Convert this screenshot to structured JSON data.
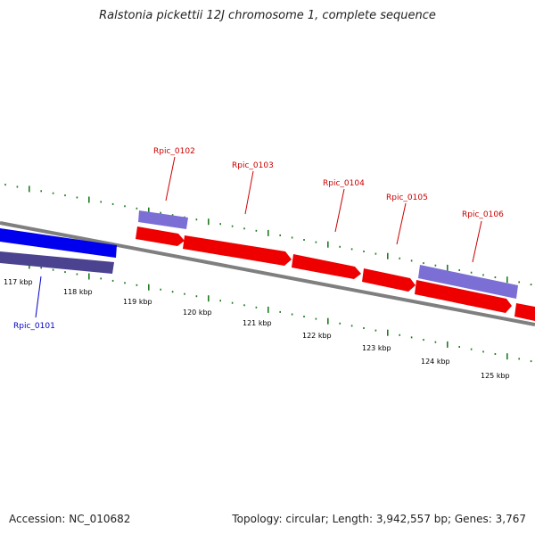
{
  "title": "Ralstonia pickettii 12J chromosome 1, complete sequence",
  "footer": {
    "accession": "Accession: NC_010682",
    "stats": "Topology: circular; Length: 3,942,557 bp; Genes: 3,767"
  },
  "colors": {
    "backbone": "#7f7f7f",
    "tick": "#1f7a1f",
    "forward_gene": "#ee0000",
    "forward_other": "#7b6fd6",
    "reverse_gene": "#0000ee",
    "reverse_other": "#4b4290",
    "label_forward": "#cc0000",
    "label_reverse": "#0000cc"
  },
  "scale_labels": [
    "117 kbp",
    "118 kbp",
    "119 kbp",
    "120 kbp",
    "121 kbp",
    "122 kbp",
    "123 kbp",
    "124 kbp",
    "125 kbp"
  ],
  "gene_labels": [
    {
      "text": "Rpic_0101",
      "strand": "reverse"
    },
    {
      "text": "Rpic_0102",
      "strand": "forward"
    },
    {
      "text": "Rpic_0103",
      "strand": "forward"
    },
    {
      "text": "Rpic_0104",
      "strand": "forward"
    },
    {
      "text": "Rpic_0105",
      "strand": "forward"
    },
    {
      "text": "Rpic_0106",
      "strand": "forward"
    }
  ]
}
